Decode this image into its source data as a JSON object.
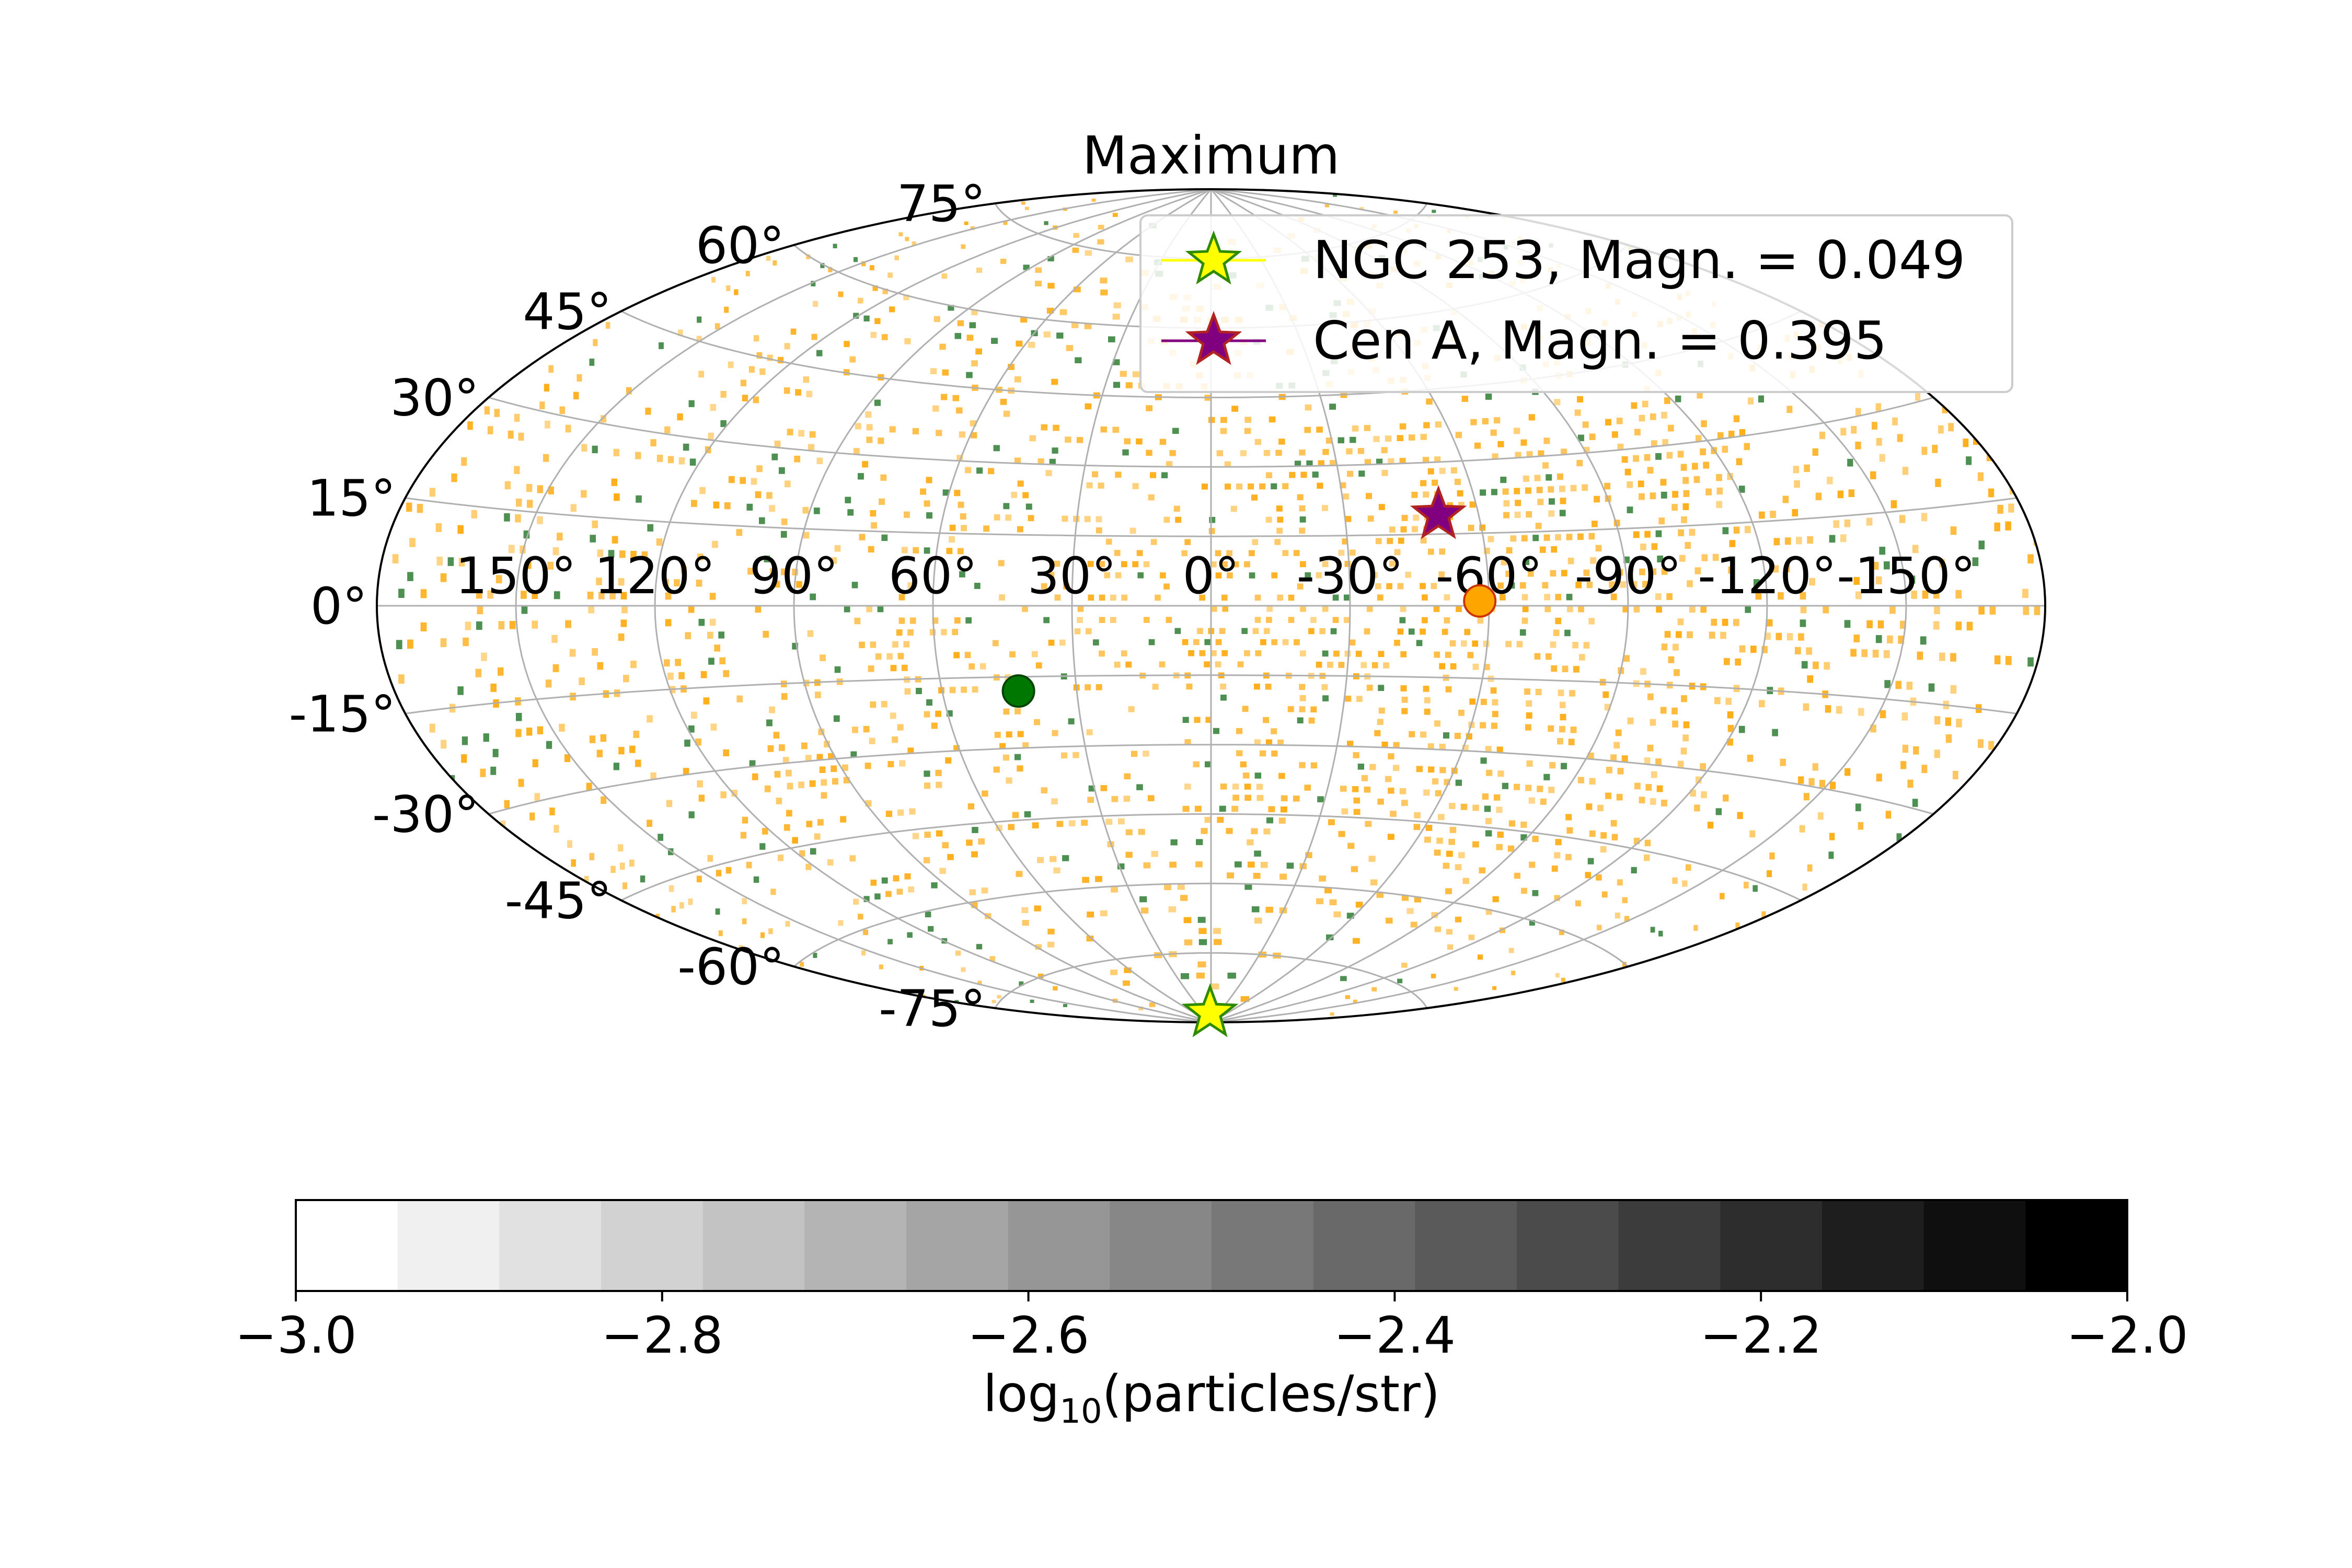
{
  "chart_data": {
    "type": "heatmap",
    "projection": "aitoff",
    "title": "Maximum",
    "lon_ticks": [
      "150°",
      "120°",
      "90°",
      "60°",
      "30°",
      "0°",
      "-30°",
      "-60°",
      "-90°",
      "-120°",
      "-150°"
    ],
    "lon_tick_values": [
      150,
      120,
      90,
      60,
      30,
      0,
      -30,
      -60,
      -90,
      -120,
      -150
    ],
    "lat_ticks": [
      "75°",
      "60°",
      "45°",
      "30°",
      "15°",
      "0°",
      "-15°",
      "-30°",
      "-45°",
      "-60°",
      "-75°"
    ],
    "lat_tick_values": [
      75,
      60,
      45,
      30,
      15,
      0,
      -15,
      -30,
      -45,
      -60,
      -75
    ],
    "grid": true,
    "legend_position": "upper-right",
    "series": [
      {
        "name": "NGC 253, Magn. = 0.049",
        "marker": "star",
        "face_color": "#ffff00",
        "edge_color": "#2e8b00",
        "line_color": "#ffff00"
      },
      {
        "name": "Cen A, Magn. = 0.395",
        "marker": "star",
        "face_color": "#800080",
        "edge_color": "#b22222",
        "line_color": "#800080"
      }
    ],
    "markers": [
      {
        "marker": "star",
        "lon": 4,
        "lat": -88,
        "face_color": "#ffff00",
        "edge_color": "#2e8b00"
      },
      {
        "marker": "star",
        "lon": -51,
        "lat": 19,
        "face_color": "#800080",
        "edge_color": "#b22222"
      },
      {
        "marker": "circle",
        "lon": -58,
        "lat": 1,
        "face_color": "#ffa500",
        "edge_color": "#cc3300"
      },
      {
        "marker": "circle",
        "lon": 43,
        "lat": -18,
        "face_color": "#007700",
        "edge_color": "#004400"
      }
    ],
    "colorbar": {
      "label_prefix": "log",
      "label_sub": "10",
      "label_suffix": "(particles/str)",
      "min": -3.0,
      "max": -2.0,
      "levels": 18,
      "cmap": "Greys",
      "tick_values": [
        -3.0,
        -2.8,
        -2.6,
        -2.4,
        -2.2,
        -2.0
      ],
      "tick_labels": [
        "−3.0",
        "−2.8",
        "−2.6",
        "−2.4",
        "−2.2",
        "−2.0"
      ]
    },
    "pixel_colors": {
      "orange": "#ffa500",
      "green": "#2e7d32",
      "orange_fraction": 0.25,
      "green_fraction": 0.035
    }
  }
}
